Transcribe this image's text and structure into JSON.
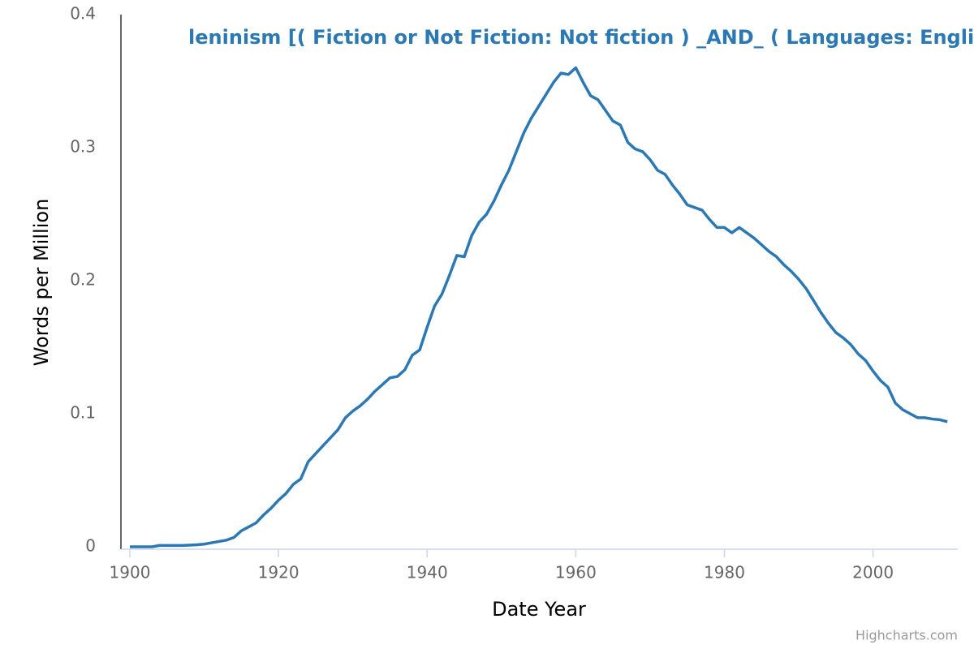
{
  "chart_data": {
    "type": "line",
    "title": "leninism [( Fiction or Not Fiction: Not fiction ) _AND_ ( Languages: English",
    "xlabel": "Date Year",
    "ylabel": "Words per Million",
    "credits": "Highcharts.com",
    "color": "#2c78b3",
    "x": [
      1900,
      1901,
      1902,
      1903,
      1904,
      1905,
      1906,
      1907,
      1908,
      1909,
      1910,
      1911,
      1912,
      1913,
      1914,
      1915,
      1916,
      1917,
      1918,
      1919,
      1920,
      1921,
      1922,
      1923,
      1924,
      1925,
      1926,
      1927,
      1928,
      1929,
      1930,
      1931,
      1932,
      1933,
      1934,
      1935,
      1936,
      1937,
      1938,
      1939,
      1940,
      1941,
      1942,
      1943,
      1944,
      1945,
      1946,
      1947,
      1948,
      1949,
      1950,
      1951,
      1952,
      1953,
      1954,
      1955,
      1956,
      1957,
      1958,
      1959,
      1960,
      1961,
      1962,
      1963,
      1964,
      1965,
      1966,
      1967,
      1968,
      1969,
      1970,
      1971,
      1972,
      1973,
      1974,
      1975,
      1976,
      1977,
      1978,
      1979,
      1980,
      1981,
      1982,
      1983,
      1984,
      1985,
      1986,
      1987,
      1988,
      1989,
      1990,
      1991,
      1992,
      1993,
      1994,
      1995,
      1996,
      1997,
      1998,
      1999,
      2000,
      2001,
      2002,
      2003,
      2004,
      2005,
      2006,
      2007,
      2008,
      2009,
      2010
    ],
    "values": [
      0,
      0,
      0,
      0,
      0.001,
      0.001,
      0.001,
      0.001,
      0.0012,
      0.0015,
      0.002,
      0.003,
      0.004,
      0.005,
      0.007,
      0.012,
      0.015,
      0.018,
      0.024,
      0.029,
      0.035,
      0.04,
      0.047,
      0.051,
      0.064,
      0.07,
      0.076,
      0.082,
      0.088,
      0.097,
      0.102,
      0.106,
      0.111,
      0.117,
      0.122,
      0.127,
      0.128,
      0.133,
      0.144,
      0.148,
      0.165,
      0.181,
      0.19,
      0.204,
      0.219,
      0.218,
      0.234,
      0.244,
      0.25,
      0.26,
      0.272,
      0.283,
      0.297,
      0.311,
      0.322,
      0.331,
      0.34,
      0.349,
      0.356,
      0.355,
      0.36,
      0.349,
      0.339,
      0.336,
      0.328,
      0.32,
      0.317,
      0.304,
      0.299,
      0.297,
      0.291,
      0.283,
      0.28,
      0.272,
      0.265,
      0.257,
      0.255,
      0.253,
      0.246,
      0.24,
      0.24,
      0.236,
      0.24,
      0.236,
      0.232,
      0.227,
      0.222,
      0.218,
      0.212,
      0.207,
      0.201,
      0.194,
      0.185,
      0.176,
      0.168,
      0.161,
      0.157,
      0.152,
      0.145,
      0.14,
      0.132,
      0.125,
      0.12,
      0.108,
      0.103,
      0.1,
      0.097,
      0.097,
      0.096,
      0.0955,
      0.094
    ],
    "xlim": [
      1898.8,
      2011.4
    ],
    "xticks": [
      1900,
      1920,
      1940,
      1960,
      1980,
      2000
    ],
    "ylim": [
      0,
      0.4
    ],
    "yticks": [
      0,
      0.1,
      0.2,
      0.3,
      0.4
    ],
    "grid": false
  }
}
